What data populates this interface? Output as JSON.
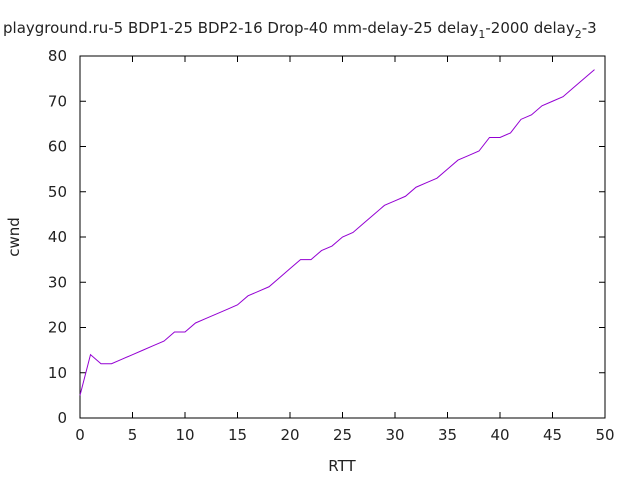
{
  "chart_data": {
    "type": "line",
    "title": {
      "main": "playground.ru-5 BDP1-25 BDP2-16 Drop-40 mm-delay-25 delay",
      "d1_sub": "1",
      "d1_val": "-2000 delay",
      "d2_sub": "2",
      "d2_tail": "-3"
    },
    "xlabel": "RTT",
    "ylabel": "cwnd",
    "xlim": [
      0,
      50
    ],
    "ylim": [
      0,
      80
    ],
    "xticks": [
      0,
      5,
      10,
      15,
      20,
      25,
      30,
      35,
      40,
      45,
      50
    ],
    "yticks": [
      0,
      10,
      20,
      30,
      40,
      50,
      60,
      70,
      80
    ],
    "grid": false,
    "series": [
      {
        "color": "#9400d3",
        "x": [
          0,
          1,
          2,
          3,
          4,
          5,
          6,
          7,
          8,
          9,
          10,
          11,
          12,
          13,
          14,
          15,
          16,
          17,
          18,
          19,
          20,
          21,
          22,
          23,
          24,
          25,
          26,
          27,
          28,
          29,
          30,
          31,
          32,
          33,
          34,
          35,
          36,
          37,
          38,
          39,
          40,
          41,
          42,
          43,
          44,
          45,
          46,
          47,
          48,
          49
        ],
        "y": [
          5,
          14,
          12,
          12,
          13,
          14,
          15,
          16,
          17,
          19,
          19,
          21,
          22,
          23,
          24,
          25,
          27,
          28,
          29,
          31,
          33,
          35,
          35,
          37,
          38,
          40,
          41,
          43,
          45,
          47,
          48,
          49,
          51,
          52,
          53,
          55,
          57,
          58,
          59,
          62,
          62,
          63,
          66,
          67,
          69,
          70,
          71,
          73,
          75,
          77
        ]
      }
    ]
  }
}
